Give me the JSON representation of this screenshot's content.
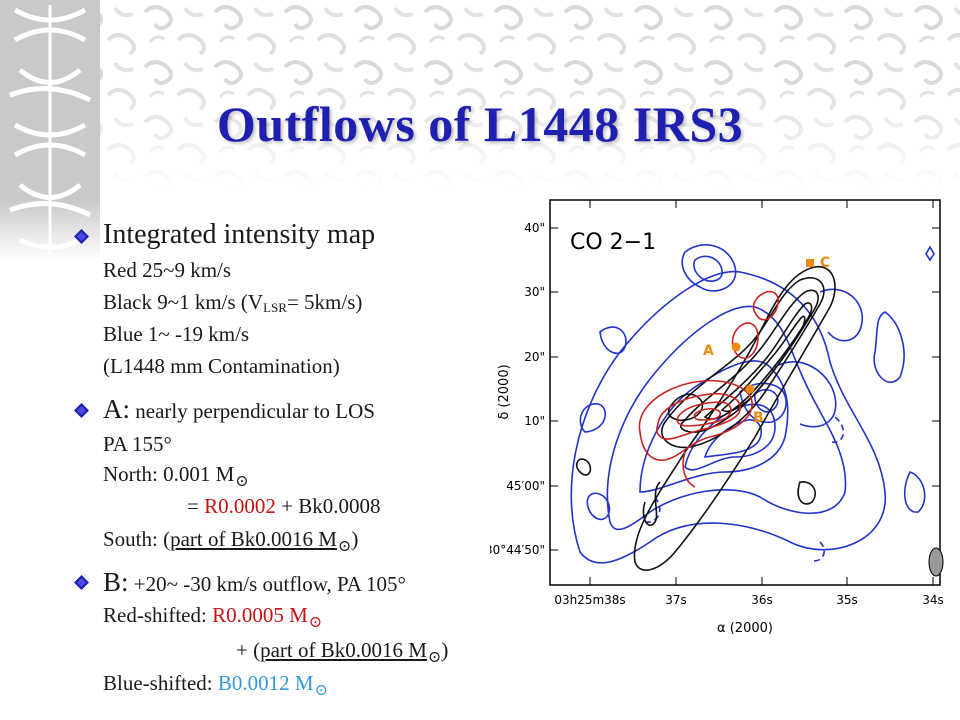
{
  "slide": {
    "title": "Outflows of L1448 IRS3",
    "bullets": {
      "b1": {
        "heading": "Integrated intensity map",
        "red": "Red 25~9 km/s",
        "black_pre": "Black 9~1 km/s (V",
        "black_sub": "LSR",
        "black_post": "= 5km/s)",
        "blue": "Blue 1~ -19 km/s",
        "contam": "(L1448 mm Contamination)"
      },
      "b2": {
        "label": "A:",
        "heading": " nearly perpendicular to LOS",
        "pa": "PA 155°",
        "north": "North: 0.001 M",
        "eq_pre": "= ",
        "eq_red": "R0.0002",
        "eq_post": " + Bk0.0008",
        "south_pre": "South: (",
        "south_u": "part of Bk0.0016 M",
        "south_post": ")"
      },
      "b3": {
        "label": "B:",
        "heading": " +20~ -30 km/s outflow, PA 105°",
        "red_pre": "Red-shifted: ",
        "red_val": "R0.0005 M",
        "plus_pre": "+ (",
        "plus_u": "part of Bk0.0016 M",
        "plus_post": ")",
        "blue_pre": "Blue-shifted: ",
        "blue_val": "B0.0012 M"
      },
      "sun_symbol": "⊙"
    }
  },
  "figure": {
    "label": "CO 2−1",
    "y_axis_title": "δ (2000)",
    "x_axis_title": "α (2000)",
    "y_ticks": [
      "40\"",
      "30\"",
      "20\"",
      "10\"",
      "45′00\"",
      "30°44′50\""
    ],
    "x_ticks": [
      "03h25m38s",
      "37s",
      "36s",
      "35s",
      "34s"
    ],
    "sources": {
      "a": "A",
      "b": "B",
      "c": "C"
    },
    "colors": {
      "red": "#cc2222",
      "black": "#111111",
      "blue": "#2233cc",
      "marker": "#f08a10",
      "title": "#1f1fb0"
    }
  }
}
